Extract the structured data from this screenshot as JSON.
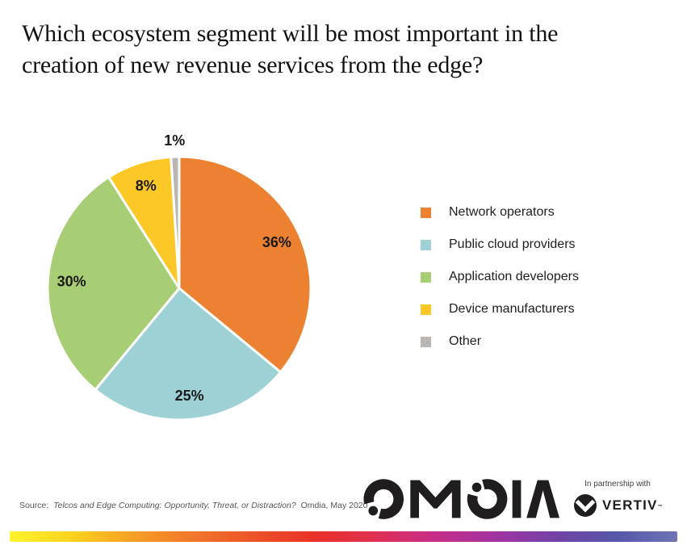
{
  "chart_data": {
    "type": "pie",
    "title": "Which ecosystem segment will be most important in the\ncreation of new revenue services from the edge?",
    "categories": [
      "Network operators",
      "Public cloud providers",
      "Application developers",
      "Device manufacturers",
      "Other"
    ],
    "values": [
      36,
      25,
      30,
      8,
      1
    ],
    "labels": [
      "36%",
      "25%",
      "30%",
      "8%",
      "1%"
    ],
    "colors": [
      "#EC8231",
      "#9DD1D5",
      "#A8CE75",
      "#FBC827",
      "#B9B6B3"
    ],
    "start_angle_deg": 0,
    "direction": "clockwise",
    "legend_position": "right",
    "slice_border_color": "#ffffff",
    "label_color": "#1a1a1a",
    "outside_label_threshold_pct": 5
  },
  "footer": {
    "source_prefix": "Source:",
    "source_italic": "Telcos and Edge Computing: Opportunity, Threat, or Distraction?",
    "source_suffix": "Omdia, May 2020",
    "omdia_brand": "OMDIA",
    "partnership_label": "In partnership with",
    "vertiv_brand": "VERTIV",
    "vertiv_trademark": "™",
    "logo_color": "#1f1d1e",
    "gradient_stops": [
      "#FFF32B",
      "#FDD41F",
      "#F6A024",
      "#F0772B",
      "#EC5429",
      "#E93127",
      "#E02F50",
      "#C62D89",
      "#A133A0",
      "#7342A6",
      "#5556A7",
      "#6E74B5"
    ]
  }
}
